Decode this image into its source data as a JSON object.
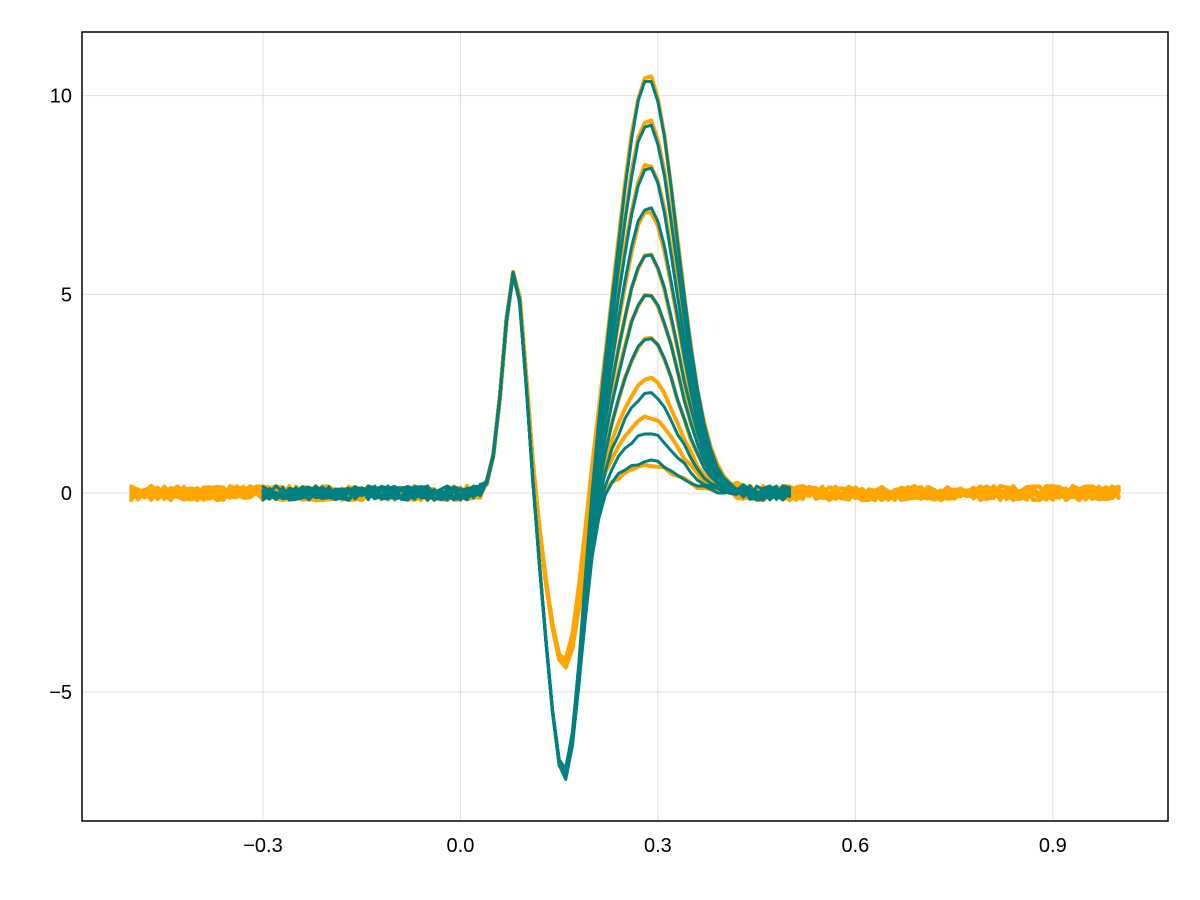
{
  "chart_data": {
    "type": "line",
    "title": "",
    "xlabel": "",
    "ylabel": "",
    "xlim": [
      -0.575,
      1.075
    ],
    "ylim": [
      -8.25,
      11.6
    ],
    "grid": true,
    "x_ticks": [
      {
        "value": -0.3,
        "label": "−0.3"
      },
      {
        "value": 0.0,
        "label": "0.0"
      },
      {
        "value": 0.3,
        "label": "0.3"
      },
      {
        "value": 0.6,
        "label": "0.6"
      },
      {
        "value": 0.9,
        "label": "0.9"
      }
    ],
    "y_ticks": [
      {
        "value": -5,
        "label": "−5"
      },
      {
        "value": 0,
        "label": "0"
      },
      {
        "value": 5,
        "label": "5"
      },
      {
        "value": 10,
        "label": "10"
      }
    ],
    "colors": {
      "orange": "#FFA500",
      "teal": "#008080"
    },
    "band_groups": [
      {
        "color": "orange",
        "stroke_width": 4,
        "x_range": [
          -0.5,
          1.0
        ],
        "neg_trough": -4.4,
        "pos_peaks": [
          0.7,
          1.9,
          2.9,
          3.9,
          5.0,
          6.0,
          7.1,
          8.3,
          9.4,
          10.5
        ]
      },
      {
        "color": "teal",
        "stroke_width": 3,
        "x_range": [
          -0.3,
          0.5
        ],
        "neg_trough": -7.2,
        "pos_peaks": [
          0.8,
          1.5,
          2.5,
          3.9,
          5.0,
          6.0,
          7.2,
          8.2,
          9.3,
          10.4
        ]
      }
    ]
  }
}
